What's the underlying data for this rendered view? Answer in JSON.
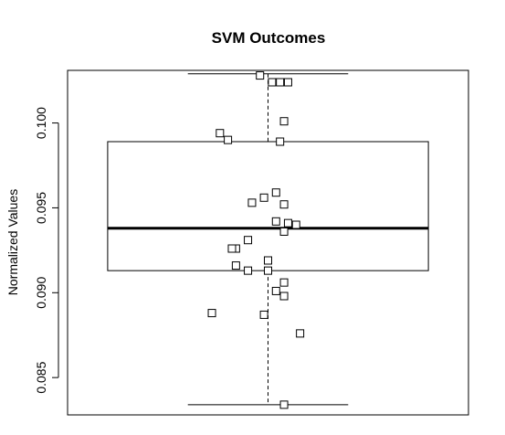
{
  "chart_data": {
    "type": "boxplot",
    "title": "SVM Outcomes",
    "xlabel": "",
    "ylabel": "Normalized Values",
    "ylim": [
      0.0828,
      0.1031
    ],
    "yticks": [
      0.085,
      0.09,
      0.095,
      0.1
    ],
    "ytick_labels": [
      "0.085",
      "0.090",
      "0.095",
      "0.100"
    ],
    "box": {
      "whisker_low": 0.0834,
      "q1": 0.0913,
      "median": 0.0938,
      "q3": 0.0989,
      "whisker_high": 0.1029
    },
    "points": [
      {
        "x": 0.98,
        "y": 0.1028
      },
      {
        "x": 1.01,
        "y": 0.1024
      },
      {
        "x": 1.05,
        "y": 0.1024
      },
      {
        "x": 1.03,
        "y": 0.1024
      },
      {
        "x": 1.04,
        "y": 0.1001
      },
      {
        "x": 0.88,
        "y": 0.0994
      },
      {
        "x": 0.9,
        "y": 0.099
      },
      {
        "x": 1.03,
        "y": 0.0989
      },
      {
        "x": 1.02,
        "y": 0.0959
      },
      {
        "x": 0.99,
        "y": 0.0956
      },
      {
        "x": 0.96,
        "y": 0.0953
      },
      {
        "x": 1.04,
        "y": 0.0952
      },
      {
        "x": 1.02,
        "y": 0.0942
      },
      {
        "x": 1.05,
        "y": 0.0941
      },
      {
        "x": 1.07,
        "y": 0.094
      },
      {
        "x": 1.04,
        "y": 0.0936
      },
      {
        "x": 0.95,
        "y": 0.0931
      },
      {
        "x": 0.92,
        "y": 0.0926
      },
      {
        "x": 0.91,
        "y": 0.0926
      },
      {
        "x": 1.0,
        "y": 0.0919
      },
      {
        "x": 0.92,
        "y": 0.0916
      },
      {
        "x": 0.95,
        "y": 0.0913
      },
      {
        "x": 1.0,
        "y": 0.0913
      },
      {
        "x": 1.04,
        "y": 0.0906
      },
      {
        "x": 1.02,
        "y": 0.0901
      },
      {
        "x": 1.04,
        "y": 0.0898
      },
      {
        "x": 0.86,
        "y": 0.0888
      },
      {
        "x": 0.99,
        "y": 0.0887
      },
      {
        "x": 1.08,
        "y": 0.0876
      },
      {
        "x": 1.04,
        "y": 0.0834
      }
    ],
    "xlim": [
      0.5,
      1.5
    ],
    "box_width": 0.8,
    "cap_width": 0.4,
    "grid": false,
    "legend": "none"
  }
}
